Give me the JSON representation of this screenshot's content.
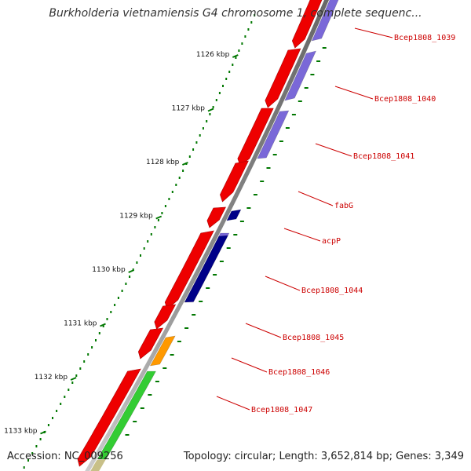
{
  "title": "Burkholderia vietnamiensis G4 chromosome 1, complete sequenc...",
  "footer": {
    "accession": "Accession: NC_009256",
    "summary": "Topology: circular; Length: 3,652,814 bp; Genes: 3,349"
  },
  "colors": {
    "background": "#ffffff",
    "backbone": "#888888",
    "cds": "#ee0000",
    "gene_label": "#cc0000",
    "tick": "#007700",
    "cog_blue_light": "#7a68d8",
    "cog_blue_dark": "#000088",
    "cog_orange": "#ff9900",
    "cog_green": "#33cc33",
    "cog_khaki": "#c8c088"
  },
  "kbp_ticks": [
    {
      "label": "1126 kbp"
    },
    {
      "label": "1127 kbp"
    },
    {
      "label": "1128 kbp"
    },
    {
      "label": "1129 kbp"
    },
    {
      "label": "1130 kbp"
    },
    {
      "label": "1131 kbp"
    },
    {
      "label": "1132 kbp"
    },
    {
      "label": "1133 kbp"
    }
  ],
  "genes": [
    {
      "label": "Bcep1808_1039",
      "cog_color": "#7a68d8"
    },
    {
      "label": "Bcep1808_1040",
      "cog_color": "#7a68d8"
    },
    {
      "label": "Bcep1808_1041",
      "cog_color": "#7a68d8"
    },
    {
      "label": "fabG",
      "cog_color": ""
    },
    {
      "label": "acpP",
      "cog_color": "#000088"
    },
    {
      "label": "Bcep1808_1044",
      "cog_color": "#7a68d8"
    },
    {
      "label": "Bcep1808_1045",
      "cog_color": "#000088"
    },
    {
      "label": "Bcep1808_1046",
      "cog_color": "#ff9900"
    },
    {
      "label": "Bcep1808_1047",
      "cog_color": "#33cc33"
    }
  ]
}
